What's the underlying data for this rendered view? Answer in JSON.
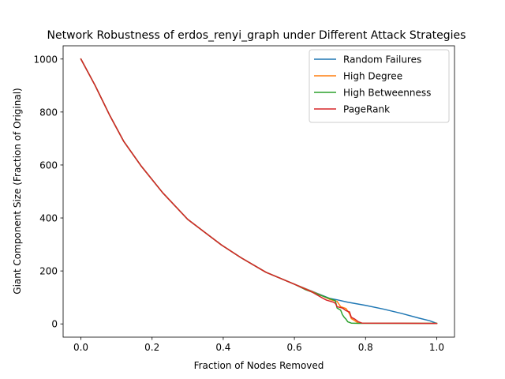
{
  "chart_data": {
    "type": "line",
    "title": "Network Robustness of erdos_renyi_graph under Different Attack Strategies",
    "xlabel": "Fraction of Nodes Removed",
    "ylabel": "Giant Component Size (Fraction of Original)",
    "xlim": [
      -0.05,
      1.05
    ],
    "ylim": [
      -50,
      1050
    ],
    "xticks": [
      0.0,
      0.2,
      0.4,
      0.6,
      0.8,
      1.0
    ],
    "xtick_labels": [
      "0.0",
      "0.2",
      "0.4",
      "0.6",
      "0.8",
      "1.0"
    ],
    "yticks": [
      0,
      200,
      400,
      600,
      800,
      1000
    ],
    "ytick_labels": [
      "0",
      "200",
      "400",
      "600",
      "800",
      "1000"
    ],
    "grid": false,
    "legend_position": "top-right",
    "series": [
      {
        "name": "Random Failures",
        "color": "#1f77b4",
        "points": [
          [
            0.0,
            1000
          ],
          [
            0.04,
            900
          ],
          [
            0.08,
            790
          ],
          [
            0.12,
            690
          ],
          [
            0.17,
            595
          ],
          [
            0.23,
            495
          ],
          [
            0.3,
            395
          ],
          [
            0.395,
            298
          ],
          [
            0.45,
            250
          ],
          [
            0.52,
            195
          ],
          [
            0.6,
            150
          ],
          [
            0.65,
            123
          ],
          [
            0.7,
            96
          ],
          [
            0.72,
            91
          ],
          [
            0.75,
            82
          ],
          [
            0.8,
            70
          ],
          [
            0.85,
            56
          ],
          [
            0.9,
            40
          ],
          [
            0.95,
            22
          ],
          [
            0.98,
            12
          ],
          [
            1.0,
            2
          ]
        ]
      },
      {
        "name": "High Degree",
        "color": "#ff7f0e",
        "points": [
          [
            0.0,
            1000
          ],
          [
            0.04,
            900
          ],
          [
            0.08,
            790
          ],
          [
            0.12,
            690
          ],
          [
            0.17,
            595
          ],
          [
            0.23,
            495
          ],
          [
            0.3,
            395
          ],
          [
            0.395,
            298
          ],
          [
            0.45,
            250
          ],
          [
            0.52,
            195
          ],
          [
            0.6,
            150
          ],
          [
            0.65,
            122
          ],
          [
            0.68,
            105
          ],
          [
            0.7,
            92
          ],
          [
            0.72,
            85
          ],
          [
            0.73,
            65
          ],
          [
            0.745,
            58
          ],
          [
            0.755,
            38
          ],
          [
            0.76,
            20
          ],
          [
            0.77,
            12
          ],
          [
            0.78,
            3
          ],
          [
            1.0,
            2
          ]
        ]
      },
      {
        "name": "High Betweenness",
        "color": "#2ca02c",
        "points": [
          [
            0.0,
            1000
          ],
          [
            0.04,
            900
          ],
          [
            0.08,
            790
          ],
          [
            0.12,
            690
          ],
          [
            0.17,
            595
          ],
          [
            0.23,
            495
          ],
          [
            0.3,
            395
          ],
          [
            0.395,
            298
          ],
          [
            0.45,
            250
          ],
          [
            0.52,
            195
          ],
          [
            0.6,
            150
          ],
          [
            0.63,
            130
          ],
          [
            0.66,
            115
          ],
          [
            0.69,
            100
          ],
          [
            0.715,
            88
          ],
          [
            0.72,
            60
          ],
          [
            0.73,
            52
          ],
          [
            0.735,
            35
          ],
          [
            0.74,
            25
          ],
          [
            0.745,
            18
          ],
          [
            0.75,
            8
          ],
          [
            0.76,
            3
          ],
          [
            0.78,
            2
          ],
          [
            1.0,
            2
          ]
        ]
      },
      {
        "name": "PageRank",
        "color": "#d62728",
        "points": [
          [
            0.0,
            1000
          ],
          [
            0.04,
            900
          ],
          [
            0.08,
            790
          ],
          [
            0.12,
            690
          ],
          [
            0.17,
            595
          ],
          [
            0.23,
            495
          ],
          [
            0.3,
            395
          ],
          [
            0.395,
            298
          ],
          [
            0.45,
            250
          ],
          [
            0.52,
            195
          ],
          [
            0.6,
            150
          ],
          [
            0.65,
            120
          ],
          [
            0.68,
            97
          ],
          [
            0.69,
            90
          ],
          [
            0.71,
            82
          ],
          [
            0.715,
            78
          ],
          [
            0.72,
            65
          ],
          [
            0.735,
            60
          ],
          [
            0.745,
            50
          ],
          [
            0.755,
            45
          ],
          [
            0.76,
            25
          ],
          [
            0.77,
            18
          ],
          [
            0.78,
            8
          ],
          [
            0.79,
            3
          ],
          [
            1.0,
            2
          ]
        ]
      }
    ]
  }
}
